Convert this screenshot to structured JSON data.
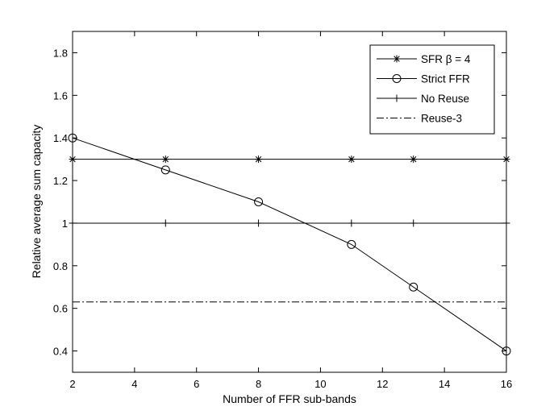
{
  "chart_data": {
    "type": "line",
    "title": "",
    "xlabel": "Number of FFR sub-bands",
    "ylabel": "Relative average sum capacity",
    "xlim": [
      2,
      16
    ],
    "ylim": [
      0.3,
      1.9
    ],
    "xticks": [
      2,
      4,
      6,
      8,
      10,
      12,
      14,
      16
    ],
    "yticks": [
      0.4,
      0.6,
      0.8,
      1,
      1.2,
      1.4,
      1.6,
      1.8
    ],
    "ytick_labels": [
      "0.4",
      "0.6",
      "0.8",
      "1",
      "1.2",
      "1.4",
      "1.6",
      "1.8"
    ],
    "grid": false,
    "legend_position": "top-right",
    "series": [
      {
        "name": "SFR β = 4",
        "marker": "star",
        "line": "solid",
        "color": "#000000",
        "x": [
          2,
          5,
          8,
          11,
          13,
          16
        ],
        "y": [
          1.3,
          1.3,
          1.3,
          1.3,
          1.3,
          1.3
        ]
      },
      {
        "name": "Strict FFR",
        "marker": "circle",
        "line": "solid",
        "color": "#000000",
        "x": [
          2,
          5,
          8,
          11,
          13,
          16
        ],
        "y": [
          1.4,
          1.25,
          1.1,
          0.9,
          0.7,
          0.4
        ]
      },
      {
        "name": "No Reuse",
        "marker": "plus",
        "line": "solid",
        "color": "#000000",
        "x": [
          2,
          5,
          8,
          11,
          13,
          16
        ],
        "y": [
          1,
          1,
          1,
          1,
          1,
          1
        ]
      },
      {
        "name": "Reuse-3",
        "marker": "none",
        "line": "dashdot",
        "color": "#000000",
        "x": [
          2,
          16
        ],
        "y": [
          0.63,
          0.63
        ]
      }
    ]
  }
}
